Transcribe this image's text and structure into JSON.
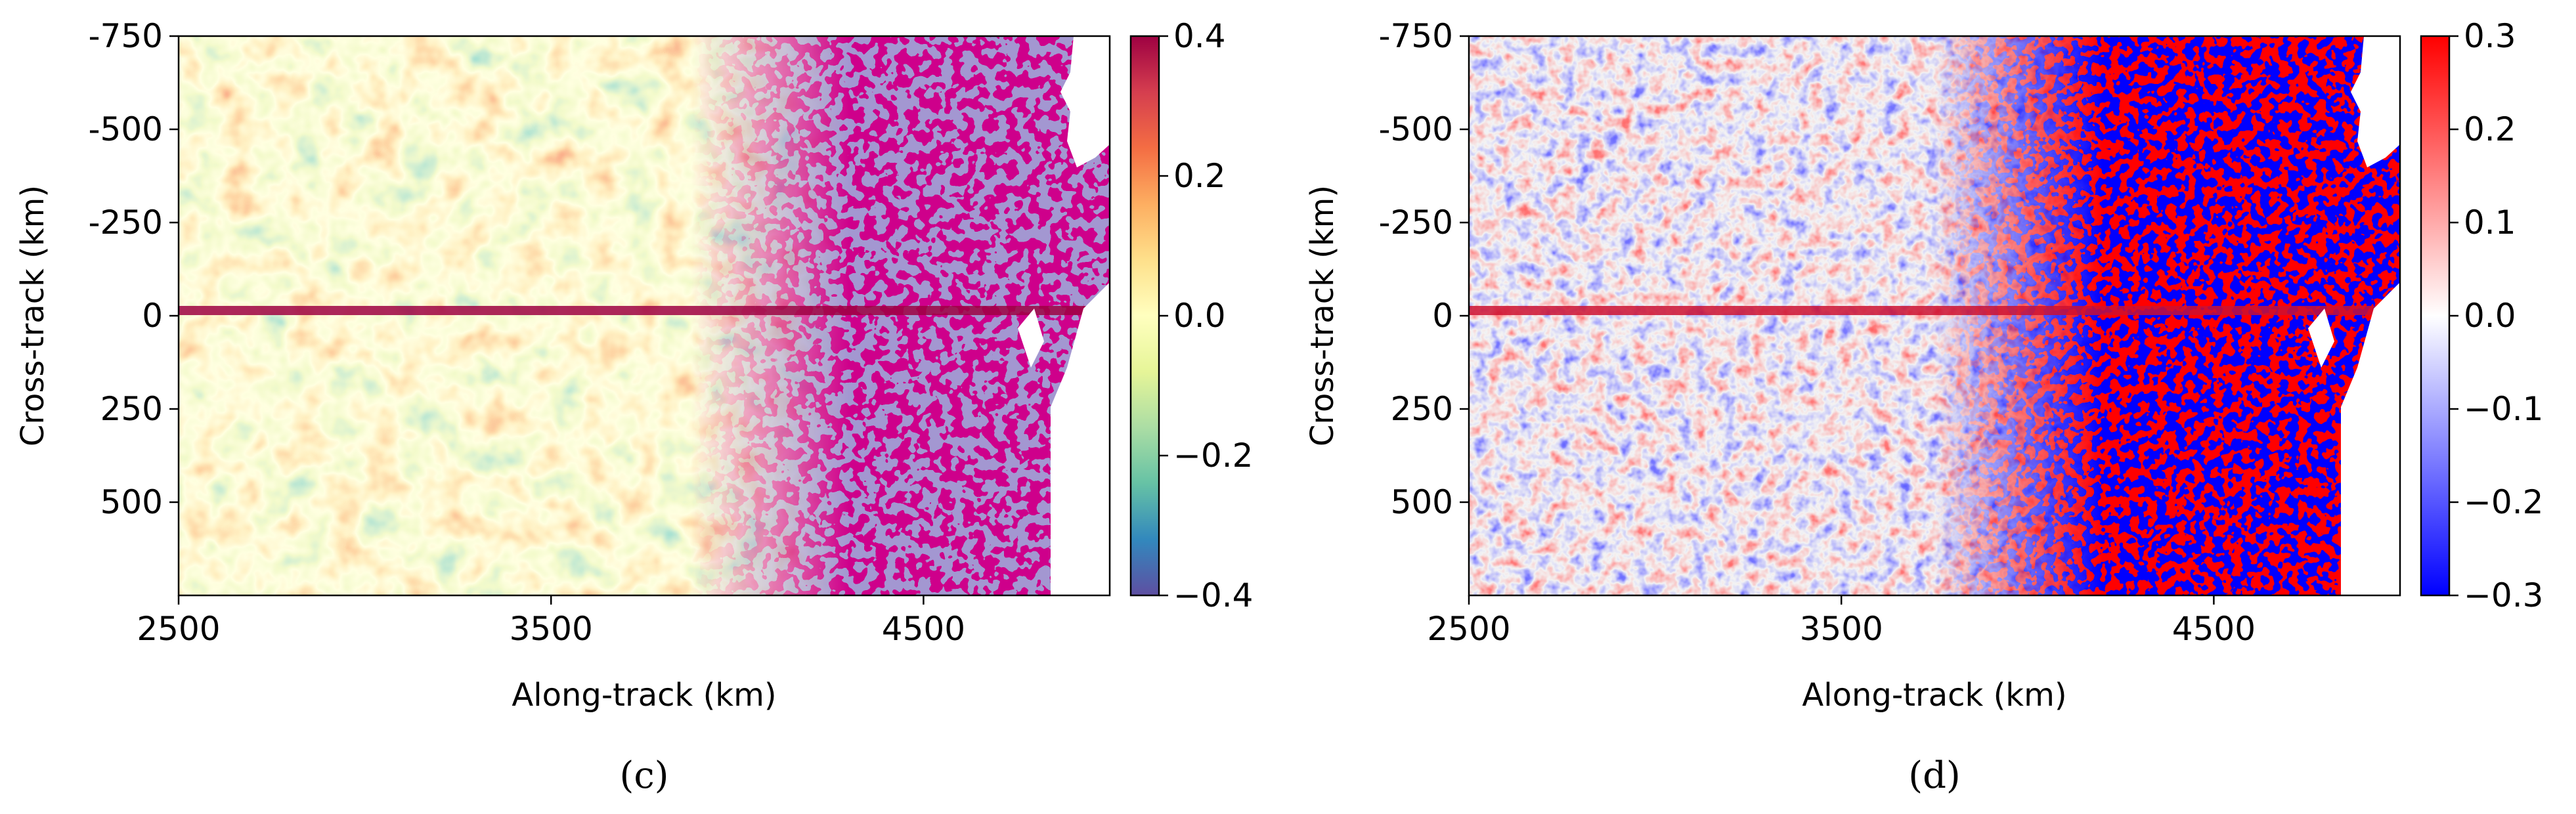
{
  "chart_data": [
    {
      "type": "heatmap",
      "panel_label": "(c)",
      "xlabel": "Along-track (km)",
      "ylabel": "Cross-track (km)",
      "xlim": [
        2500,
        5000
      ],
      "ylim": [
        750,
        -750
      ],
      "xticks": [
        2500,
        3500,
        4500
      ],
      "xtick_labels": [
        "2500",
        "3500",
        "4500"
      ],
      "yticks": [
        -750,
        -500,
        -250,
        0,
        250,
        500
      ],
      "ytick_labels": [
        "-750",
        "-500",
        "-250",
        "0",
        "250",
        "500"
      ],
      "colorbar": {
        "colormap": "Spectral_r",
        "range": [
          -0.4,
          0.4
        ],
        "ticks": [
          0.4,
          0.2,
          0.0,
          -0.2,
          -0.4
        ],
        "tick_labels": [
          "0.4",
          "0.2",
          "0.0",
          "−0.2",
          "−0.4"
        ],
        "colors": [
          "#5e4fa2",
          "#3288bd",
          "#66c2a5",
          "#abdda4",
          "#e6f598",
          "#ffffbf",
          "#fee08b",
          "#fdae61",
          "#f46d43",
          "#d53e4f",
          "#9e0142"
        ]
      }
    },
    {
      "type": "heatmap",
      "panel_label": "(d)",
      "xlabel": "Along-track (km)",
      "ylabel": "Cross-track (km)",
      "xlim": [
        2500,
        5000
      ],
      "ylim": [
        750,
        -750
      ],
      "xticks": [
        2500,
        3500,
        4500
      ],
      "xtick_labels": [
        "2500",
        "3500",
        "4500"
      ],
      "yticks": [
        -750,
        -500,
        -250,
        0,
        250,
        500
      ],
      "ytick_labels": [
        "-750",
        "-500",
        "-250",
        "0",
        "250",
        "500"
      ],
      "colorbar": {
        "colormap": "bwr",
        "range": [
          -0.3,
          0.3
        ],
        "ticks": [
          0.3,
          0.2,
          0.1,
          0.0,
          -0.1,
          -0.2,
          -0.3
        ],
        "tick_labels": [
          "0.3",
          "0.2",
          "0.1",
          "0.0",
          "−0.1",
          "−0.2",
          "−0.3"
        ],
        "colors": [
          "#0000ff",
          "#ffffff",
          "#ff0000"
        ]
      }
    }
  ]
}
